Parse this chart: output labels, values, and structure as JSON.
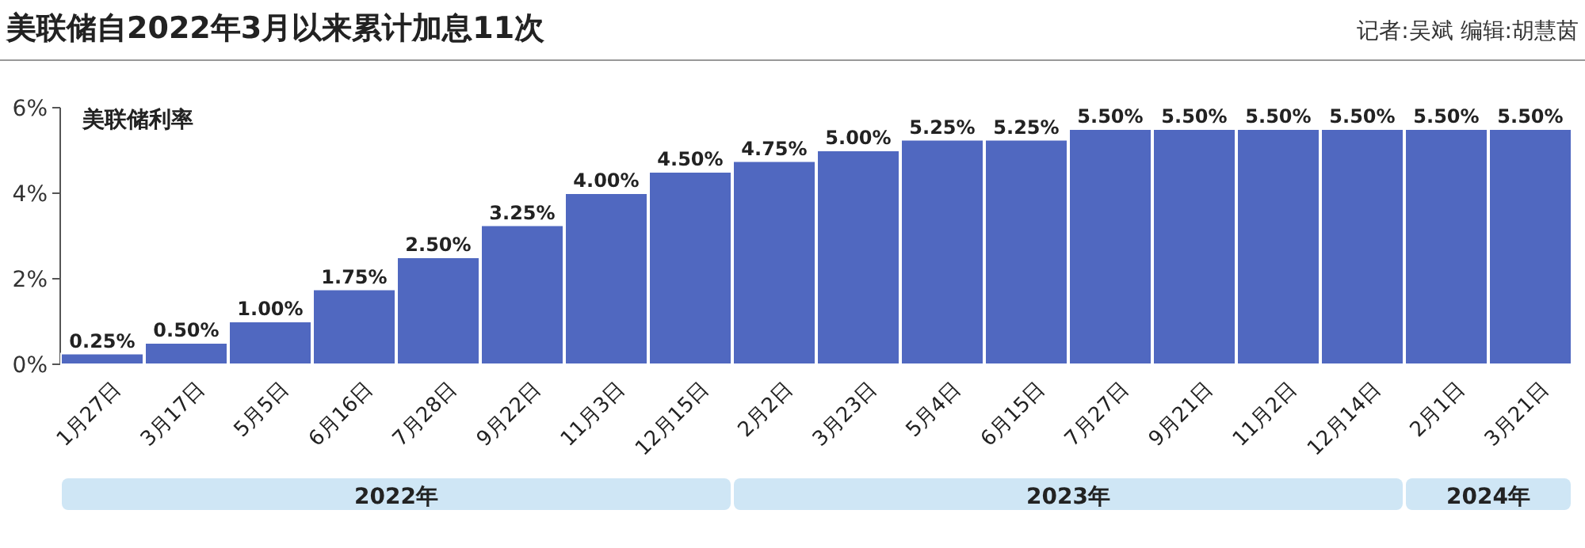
{
  "chart_data": {
    "type": "bar",
    "title": "美联储自2022年3月以来累计加息11次",
    "ylabel": "美联储利率",
    "annotations": [
      "记者:吴斌  编辑:胡慧茵",
      "2022年",
      "2023年",
      "2024年"
    ],
    "categories": [
      "1月27日",
      "3月17日",
      "5月5日",
      "6月16日",
      "7月28日",
      "9月22日",
      "11月3日",
      "12月15日",
      "2月2日",
      "3月23日",
      "5月4日",
      "6月15日",
      "7月27日",
      "9月21日",
      "11月2日",
      "12月14日",
      "2月1日",
      "3月21日"
    ],
    "values": [
      0.25,
      0.5,
      1.0,
      1.75,
      2.5,
      3.25,
      4.0,
      4.5,
      4.75,
      5.0,
      5.25,
      5.25,
      5.5,
      5.5,
      5.5,
      5.5,
      5.5,
      5.5
    ],
    "value_labels": [
      "0.25%",
      "0.50%",
      "1.00%",
      "1.75%",
      "2.50%",
      "3.25%",
      "4.00%",
      "4.50%",
      "4.75%",
      "5.00%",
      "5.25%",
      "5.25%",
      "5.50%",
      "5.50%",
      "5.50%",
      "5.50%",
      "5.50%",
      "5.50%"
    ],
    "color": "#5068c0",
    "ylim": [
      0,
      6
    ],
    "yticks": [
      {
        "value": 0,
        "label": "0%"
      },
      {
        "value": 2,
        "label": "2%"
      },
      {
        "value": 4,
        "label": "4%"
      },
      {
        "value": 6,
        "label": "6%"
      }
    ]
  }
}
